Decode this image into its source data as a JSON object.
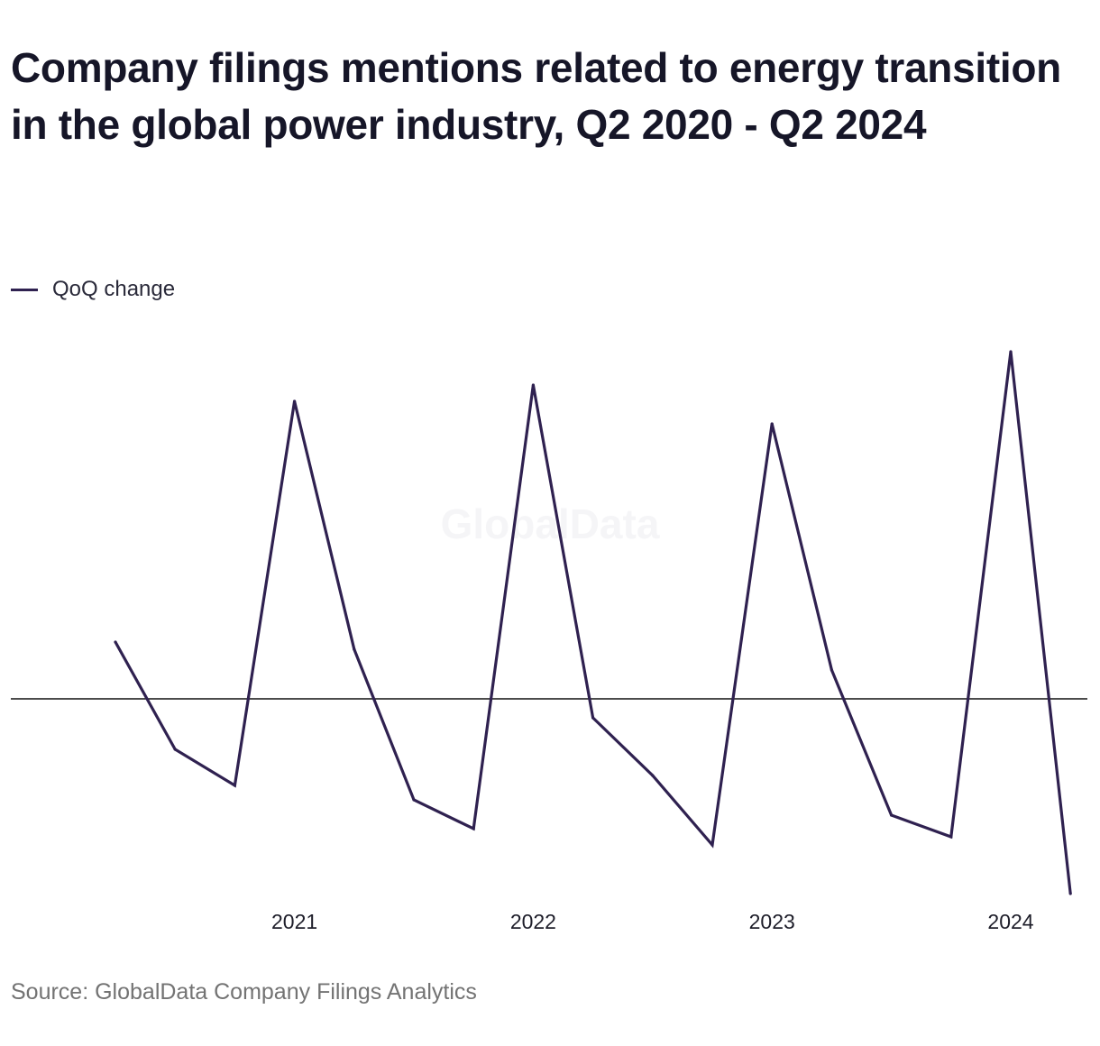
{
  "chart_data": {
    "type": "line",
    "title": "Company filings mentions related to energy transition in the global power industry, Q2 2020 - Q2 2024",
    "xlabel": "",
    "ylabel": "",
    "x": [
      "Q2 2020",
      "Q3 2020",
      "Q4 2020",
      "Q1 2021",
      "Q2 2021",
      "Q3 2021",
      "Q4 2021",
      "Q1 2022",
      "Q2 2022",
      "Q3 2022",
      "Q4 2022",
      "Q1 2023",
      "Q2 2023",
      "Q3 2023",
      "Q4 2023",
      "Q1 2024",
      "Q2 2024"
    ],
    "series": [
      {
        "name": "QoQ change",
        "color": "#2f2150",
        "values": [
          63,
          -56,
          -96,
          330,
          55,
          -112,
          -144,
          348,
          -21,
          -85,
          -162,
          305,
          32,
          -129,
          -153,
          385,
          -216
        ]
      }
    ],
    "x_tick_labels": [
      {
        "label": "2021",
        "at": "Q1 2021"
      },
      {
        "label": "2022",
        "at": "Q1 2022"
      },
      {
        "label": "2023",
        "at": "Q1 2023"
      },
      {
        "label": "2024",
        "at": "Q1 2024"
      }
    ],
    "ylim": [
      -216,
      385
    ],
    "zero_line": true,
    "grid": false,
    "legend_position": "top-left",
    "watermark": "GlobalData"
  },
  "source": "Source: GlobalData Company Filings Analytics"
}
